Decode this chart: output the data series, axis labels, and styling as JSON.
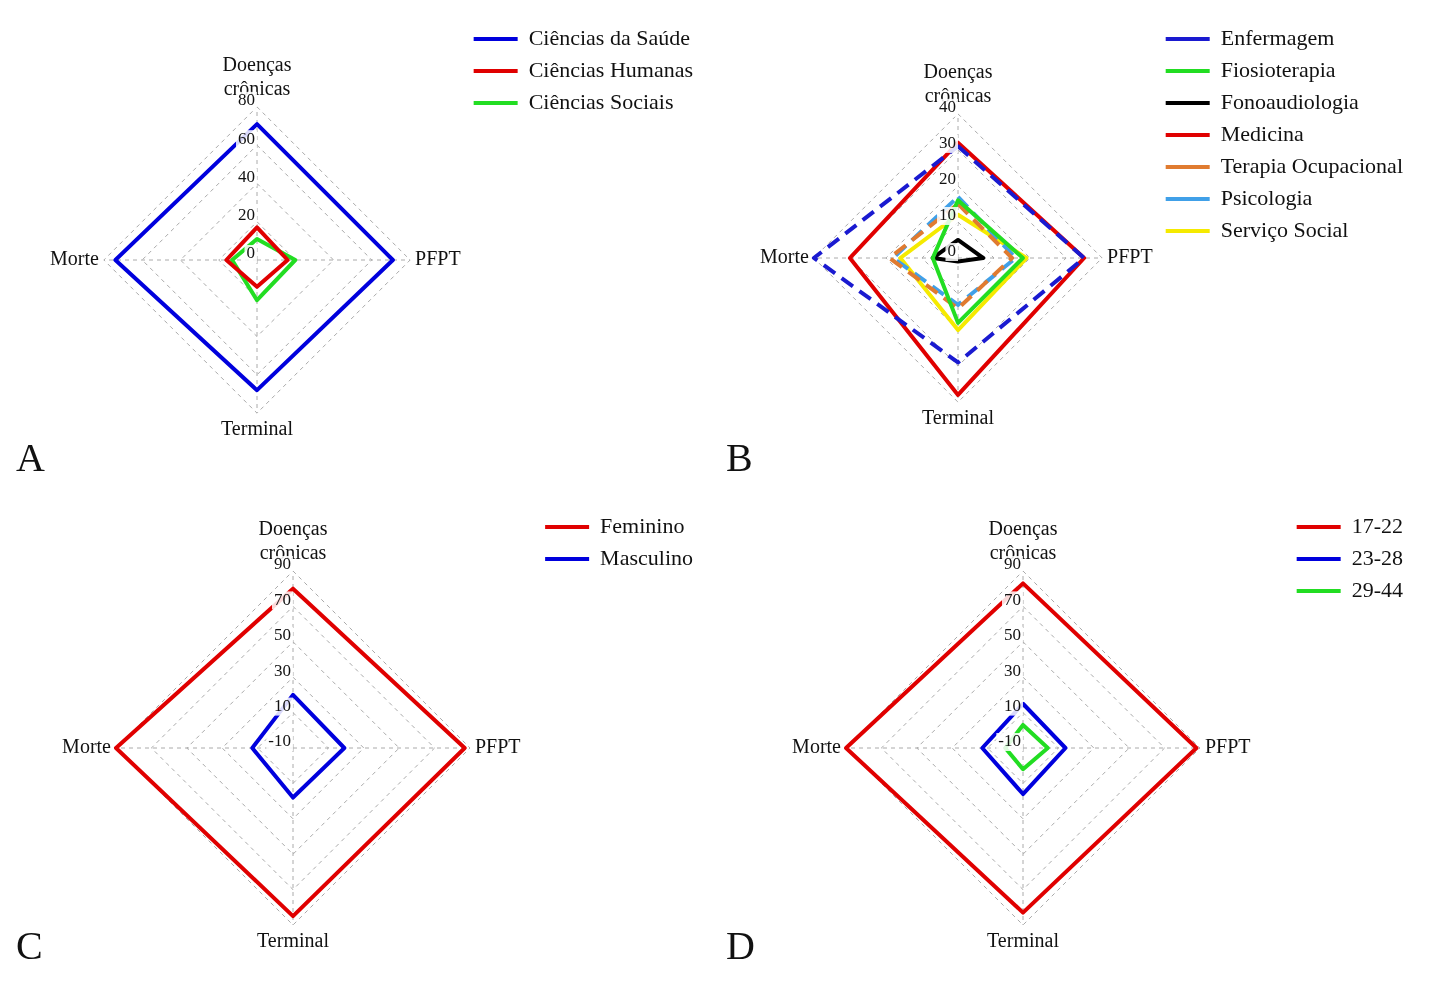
{
  "chart_data": [
    {
      "type": "radar",
      "categories": [
        "Doenças crônicas",
        "PFPT",
        "Terminal",
        "Morte"
      ],
      "ylim": [
        0,
        80
      ],
      "yticks": [
        0,
        20,
        40,
        60,
        80
      ],
      "grid": true,
      "legend": "top right",
      "marker": "none",
      "annotations": [
        "A"
      ],
      "series": [
        {
          "name": "Ciências da Saúde",
          "color": "#0000dd",
          "values": [
            71,
            71,
            68,
            74
          ]
        },
        {
          "name": "Ciências Humanas",
          "color": "#e00000",
          "values": [
            17,
            16,
            14,
            16
          ]
        },
        {
          "name": "Ciências Sociais",
          "color": "#22dd22",
          "values": [
            11,
            20,
            21,
            13
          ]
        }
      ]
    },
    {
      "type": "radar",
      "categories": [
        "Doenças crônicas",
        "PFPT",
        "Terminal",
        "Morte"
      ],
      "ylim": [
        0,
        40
      ],
      "yticks": [
        0,
        10,
        20,
        30,
        40
      ],
      "grid": true,
      "legend": "top right",
      "marker": "none",
      "annotations": [
        "B"
      ],
      "series": [
        {
          "name": "Enfermagem",
          "color": "#1a1ad0",
          "values": [
            31,
            35,
            29,
            40
          ],
          "line_style": "dashed"
        },
        {
          "name": "Fiosioterapia",
          "color": "#22dd22",
          "values": [
            16,
            18,
            18,
            7
          ],
          "line_style": "solid"
        },
        {
          "name": "Fonoaudiologia",
          "color": "#000000",
          "values": [
            5,
            7,
            1,
            7
          ],
          "line_style": "solid"
        },
        {
          "name": "Medicina",
          "color": "#e00000",
          "values": [
            32,
            35,
            38,
            30
          ],
          "line_style": "solid"
        },
        {
          "name": "Terapia Ocupacional",
          "color": "#e07b30",
          "values": [
            15,
            15,
            14,
            19
          ],
          "line_style": "dashed"
        },
        {
          "name": "Psicologia",
          "color": "#40a0e8",
          "values": [
            17,
            16,
            13,
            18
          ],
          "line_style": "dashed"
        },
        {
          "name": "Serviço Social",
          "color": "#f5ea00",
          "values": [
            12,
            19,
            20,
            16
          ],
          "line_style": "solid"
        }
      ]
    },
    {
      "type": "radar",
      "categories": [
        "Doenças crônicas",
        "PFPT",
        "Terminal",
        "Morte"
      ],
      "ylim": [
        -10,
        90
      ],
      "yticks": [
        -10,
        10,
        30,
        50,
        70,
        90
      ],
      "grid": true,
      "legend": "top right",
      "marker": "none",
      "annotations": [
        "C"
      ],
      "series": [
        {
          "name": "Feminino",
          "color": "#e00000",
          "values": [
            80,
            87,
            85,
            90
          ]
        },
        {
          "name": "Masculino",
          "color": "#0000dd",
          "values": [
            20,
            19,
            18,
            13
          ]
        }
      ]
    },
    {
      "type": "radar",
      "categories": [
        "Doenças crônicas",
        "PFPT",
        "Terminal",
        "Morte"
      ],
      "ylim": [
        -10,
        90
      ],
      "yticks": [
        -10,
        10,
        30,
        50,
        70,
        90
      ],
      "grid": true,
      "legend": "top right",
      "marker": "none",
      "annotations": [
        "D"
      ],
      "series": [
        {
          "name": "17-22",
          "color": "#e00000",
          "values": [
            83,
            88,
            83,
            90
          ]
        },
        {
          "name": "23-28",
          "color": "#0000dd",
          "values": [
            15,
            14,
            16,
            13
          ]
        },
        {
          "name": "29-44",
          "color": "#22dd22",
          "values": [
            3,
            4,
            2,
            0
          ]
        }
      ]
    }
  ]
}
